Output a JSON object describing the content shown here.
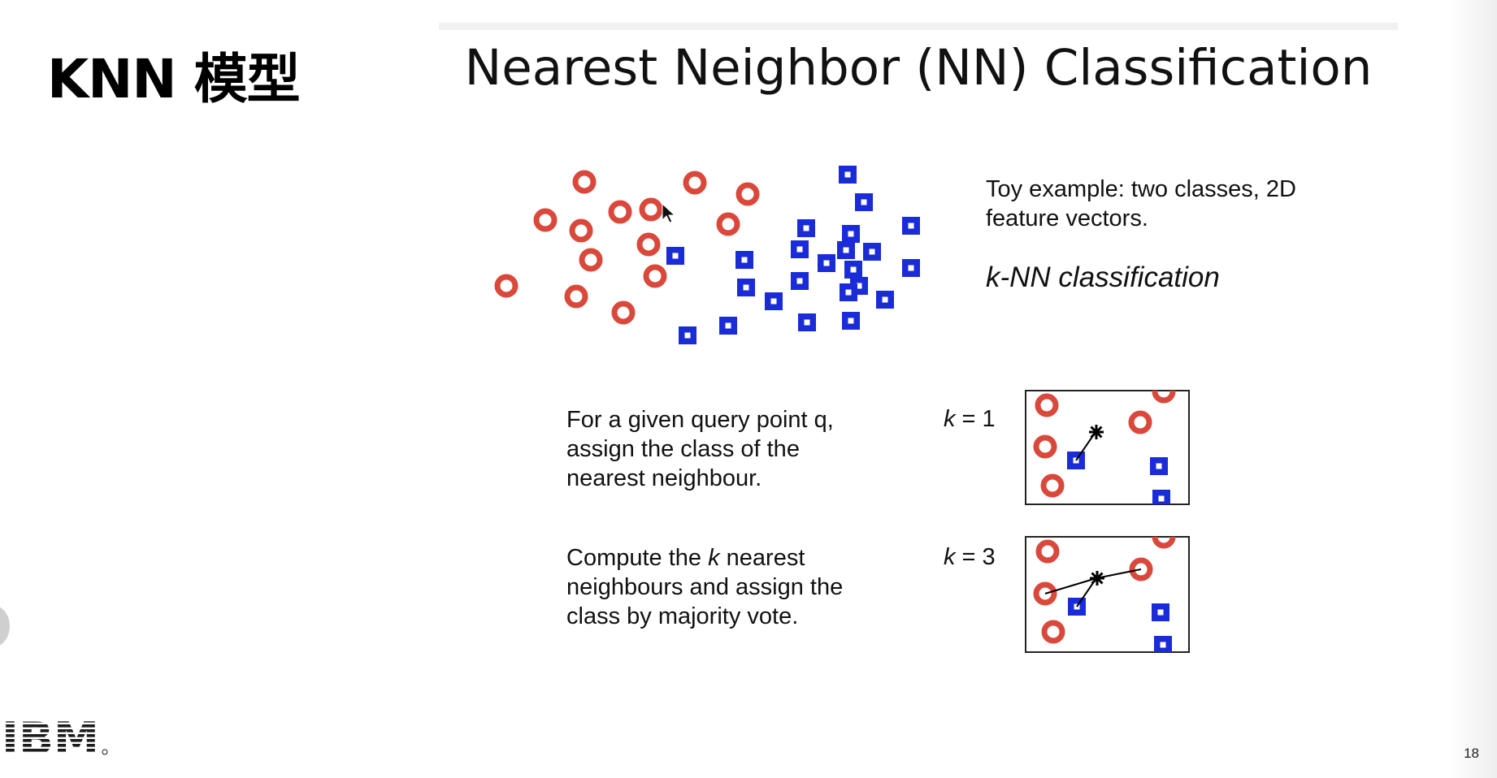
{
  "deck_title": "KNN 模型",
  "slide_title": "Nearest Neighbor (NN) Classification",
  "toy_example": {
    "lines": [
      "Toy example: two classes, 2D",
      "feature vectors."
    ],
    "heading": "k-NN classification"
  },
  "nn_rule": {
    "lines": [
      "For a given query point q,",
      "assign the class of the",
      "nearest neighbour."
    ],
    "k_var": "k",
    "k_rest": " = 1"
  },
  "vote_rule": {
    "line1_before": "Compute the ",
    "line1_var": "k",
    "line1_after": " nearest",
    "line2": "neighbours and assign the",
    "line3": "class by majority vote.",
    "k_var": "k",
    "k_rest": " = 3"
  },
  "page_number": "18",
  "logo_text": "IBM",
  "colors": {
    "class_circle": "#d9483b",
    "class_square": "#1a2bd8",
    "query_star": "#000000"
  }
}
